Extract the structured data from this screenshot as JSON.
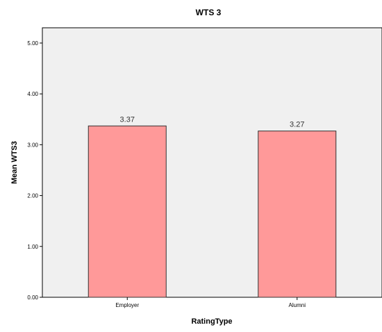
{
  "chart_data": {
    "type": "bar",
    "title": "WTS 3",
    "xlabel": "RatingType",
    "ylabel": "Mean WTS3",
    "categories": [
      "Employer",
      "Alumni"
    ],
    "values": [
      3.37,
      3.27
    ],
    "data_labels": [
      "3.37",
      "3.27"
    ],
    "yticks": [
      0,
      1,
      2,
      3,
      4,
      5
    ],
    "ytick_labels": [
      "0.00",
      "1.00",
      "2.00",
      "3.00",
      "4.00",
      "5.00"
    ],
    "ylim": [
      0,
      5.3
    ],
    "grid": false,
    "legend": "none",
    "colors": {
      "bar_fill": "#ff9999",
      "bar_stroke": "#333333",
      "plot_background": "#f0f0f0",
      "axis": "#000000"
    }
  }
}
